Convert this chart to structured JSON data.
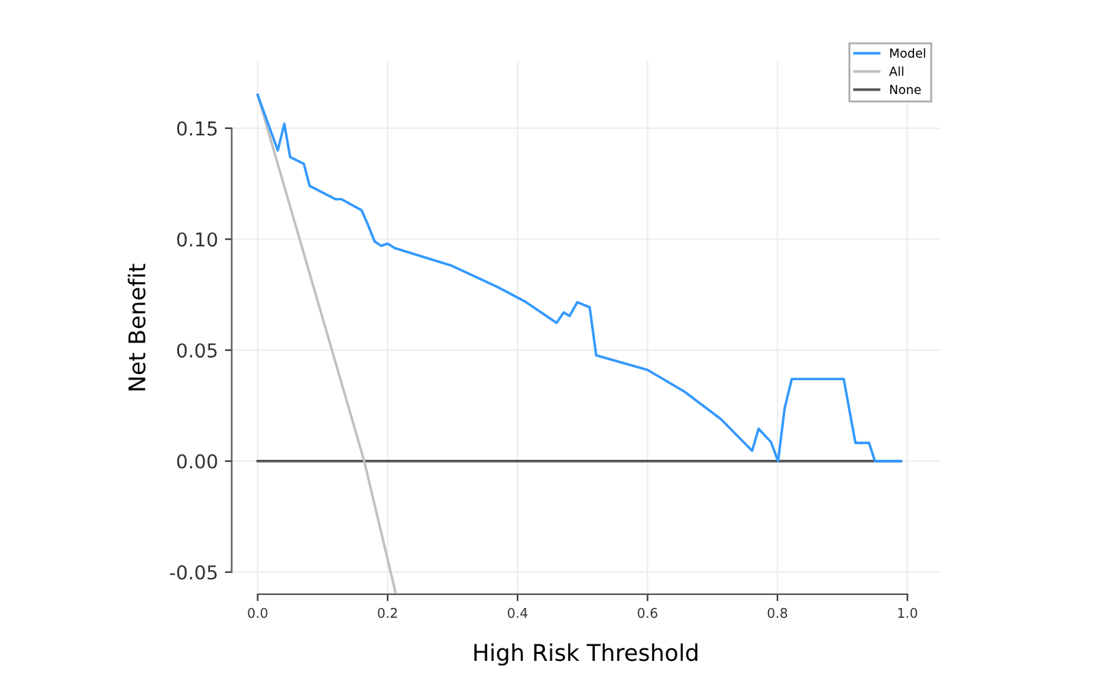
{
  "chart_data": {
    "type": "line",
    "xlabel": "High Risk Threshold",
    "ylabel": "Net Benefit",
    "xlim": [
      -0.04,
      1.05
    ],
    "ylim": [
      -0.06,
      0.18
    ],
    "xticks": [
      {
        "value": 0,
        "label": "0.0"
      },
      {
        "value": 0.2,
        "label": "0.2"
      },
      {
        "value": 0.4,
        "label": "0.4"
      },
      {
        "value": 0.6,
        "label": "0.6"
      },
      {
        "value": 0.8,
        "label": "0.8"
      },
      {
        "value": 1,
        "label": "1.0"
      }
    ],
    "yticks": [
      {
        "value": -0.05,
        "label": "-0.05"
      },
      {
        "value": 0,
        "label": "0.00"
      },
      {
        "value": 0.05,
        "label": "0.05"
      },
      {
        "value": 0.1,
        "label": "0.10"
      },
      {
        "value": 0.15,
        "label": "0.15"
      }
    ],
    "grid": true,
    "legend": "top right",
    "line_style": "solid",
    "marker": "none",
    "series": [
      {
        "name": "Model",
        "color": "#3399ff",
        "x": [
          0,
          0.031,
          0.041,
          0.05,
          0.071,
          0.08,
          0.12,
          0.129,
          0.16,
          0.169,
          0.18,
          0.19,
          0.2,
          0.211,
          0.299,
          0.369,
          0.411,
          0.46,
          0.471,
          0.48,
          0.492,
          0.511,
          0.521,
          0.6,
          0.657,
          0.713,
          0.761,
          0.771,
          0.79,
          0.801,
          0.811,
          0.822,
          0.902,
          0.92,
          0.941,
          0.95,
          0.99
        ],
        "values": [
          0.165,
          0.14,
          0.152,
          0.137,
          0.134,
          0.124,
          0.118,
          0.118,
          0.113,
          0.107,
          0.099,
          0.097,
          0.098,
          0.096,
          0.088,
          0.0785,
          0.072,
          0.0623,
          0.067,
          0.0654,
          0.0716,
          0.0693,
          0.0477,
          0.0411,
          0.0313,
          0.0189,
          0.0047,
          0.0146,
          0.0086,
          0.0,
          0.0237,
          0.037,
          0.037,
          0.0082,
          0.0082,
          0.0,
          0.0
        ]
      },
      {
        "name": "All",
        "color": "#c0c0c0",
        "x": [
          0,
          0.164,
          0.212
        ],
        "values": [
          0.165,
          0.0,
          -0.059
        ]
      },
      {
        "name": "None",
        "color": "#555555",
        "x": [
          0,
          0.99
        ],
        "values": [
          0,
          0
        ]
      }
    ]
  }
}
